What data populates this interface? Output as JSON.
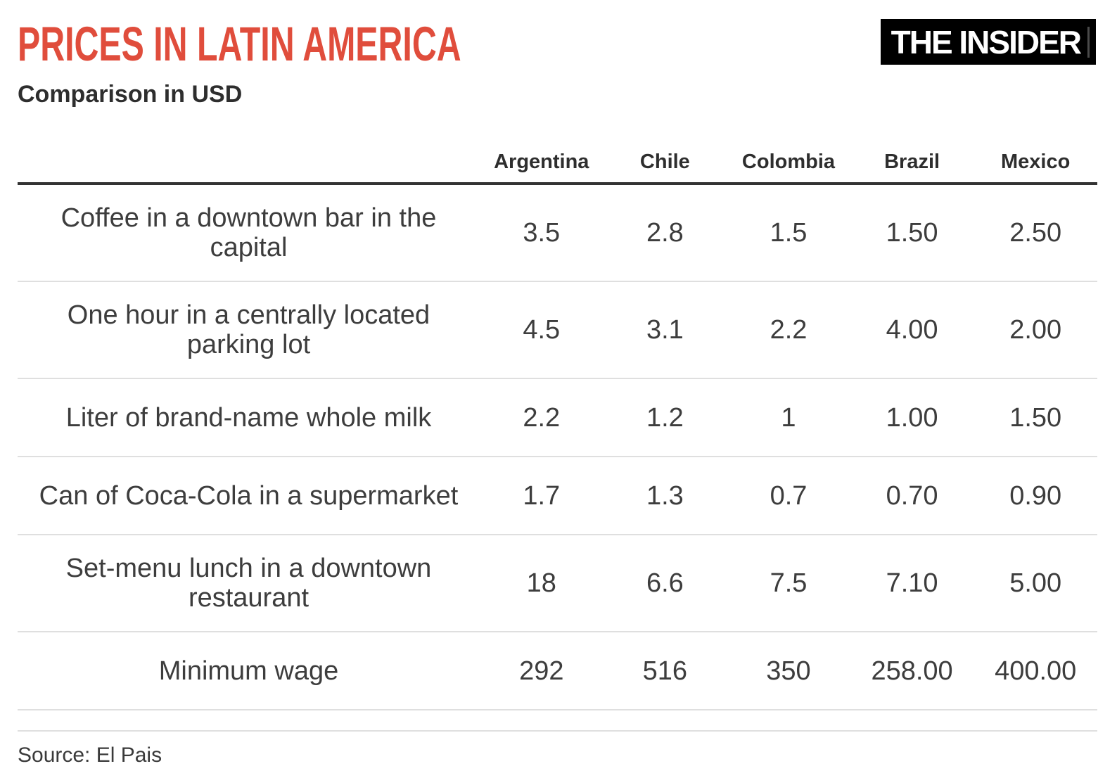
{
  "header": {
    "title": "PRICES IN LATIN AMERICA",
    "subtitle": "Comparison in USD",
    "logo_text": "THE INSIDER"
  },
  "colors": {
    "title_red": "#e04d3c",
    "heading_dark": "#2e2e2e",
    "body_text": "#3d3d3d",
    "header_rule": "#333333",
    "row_divider": "#dfdfdf",
    "logo_bg": "#000000",
    "logo_text": "#ffffff"
  },
  "chart_data": {
    "type": "table",
    "title": "PRICES IN LATIN AMERICA",
    "subtitle": "Comparison in USD",
    "columns": [
      "Argentina",
      "Chile",
      "Colombia",
      "Brazil",
      "Mexico"
    ],
    "rows": [
      {
        "label": "Coffee in a downtown bar in the\ncapital",
        "values": [
          "3.5",
          "2.8",
          "1.5",
          "1.50",
          "2.50"
        ]
      },
      {
        "label": "One hour in a centrally located\nparking lot",
        "values": [
          "4.5",
          "3.1",
          "2.2",
          "4.00",
          "2.00"
        ]
      },
      {
        "label": "Liter of brand-name whole milk",
        "values": [
          "2.2",
          "1.2",
          "1",
          "1.00",
          "1.50"
        ]
      },
      {
        "label": "Can of Coca-Cola in a supermarket",
        "values": [
          "1.7",
          "1.3",
          "0.7",
          "0.70",
          "0.90"
        ]
      },
      {
        "label": "Set-menu lunch in a downtown\nrestaurant",
        "values": [
          "18",
          "6.6",
          "7.5",
          "7.10",
          "5.00"
        ]
      },
      {
        "label": "Minimum wage",
        "values": [
          "292",
          "516",
          "350",
          "258.00",
          "400.00"
        ]
      }
    ]
  },
  "footer": {
    "source": "Source: El Pais"
  }
}
